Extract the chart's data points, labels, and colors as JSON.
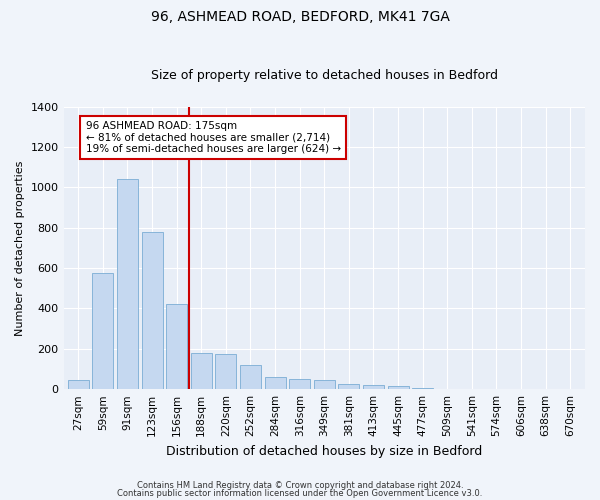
{
  "title": "96, ASHMEAD ROAD, BEDFORD, MK41 7GA",
  "subtitle": "Size of property relative to detached houses in Bedford",
  "xlabel": "Distribution of detached houses by size in Bedford",
  "ylabel": "Number of detached properties",
  "categories": [
    "27sqm",
    "59sqm",
    "91sqm",
    "123sqm",
    "156sqm",
    "188sqm",
    "220sqm",
    "252sqm",
    "284sqm",
    "316sqm",
    "349sqm",
    "381sqm",
    "413sqm",
    "445sqm",
    "477sqm",
    "509sqm",
    "541sqm",
    "574sqm",
    "606sqm",
    "638sqm",
    "670sqm"
  ],
  "values": [
    45,
    575,
    1040,
    780,
    420,
    180,
    175,
    120,
    60,
    50,
    45,
    25,
    22,
    18,
    8,
    0,
    0,
    0,
    0,
    0,
    0
  ],
  "bar_color": "#c5d8f0",
  "bar_edge_color": "#7aadd4",
  "vline_x": 4.5,
  "vline_color": "#cc0000",
  "annotation_line1": "96 ASHMEAD ROAD: 175sqm",
  "annotation_line2": "← 81% of detached houses are smaller (2,714)",
  "annotation_line3": "19% of semi-detached houses are larger (624) →",
  "annotation_box_color": "#cc0000",
  "ylim": [
    0,
    1400
  ],
  "yticks": [
    0,
    200,
    400,
    600,
    800,
    1000,
    1200,
    1400
  ],
  "footer1": "Contains HM Land Registry data © Crown copyright and database right 2024.",
  "footer2": "Contains public sector information licensed under the Open Government Licence v3.0.",
  "bg_color": "#f0f4fa",
  "plot_bg_color": "#e8eef7",
  "title_fontsize": 10,
  "subtitle_fontsize": 9,
  "ylabel_fontsize": 8,
  "xlabel_fontsize": 9,
  "tick_fontsize": 7.5,
  "annot_fontsize": 7.5
}
